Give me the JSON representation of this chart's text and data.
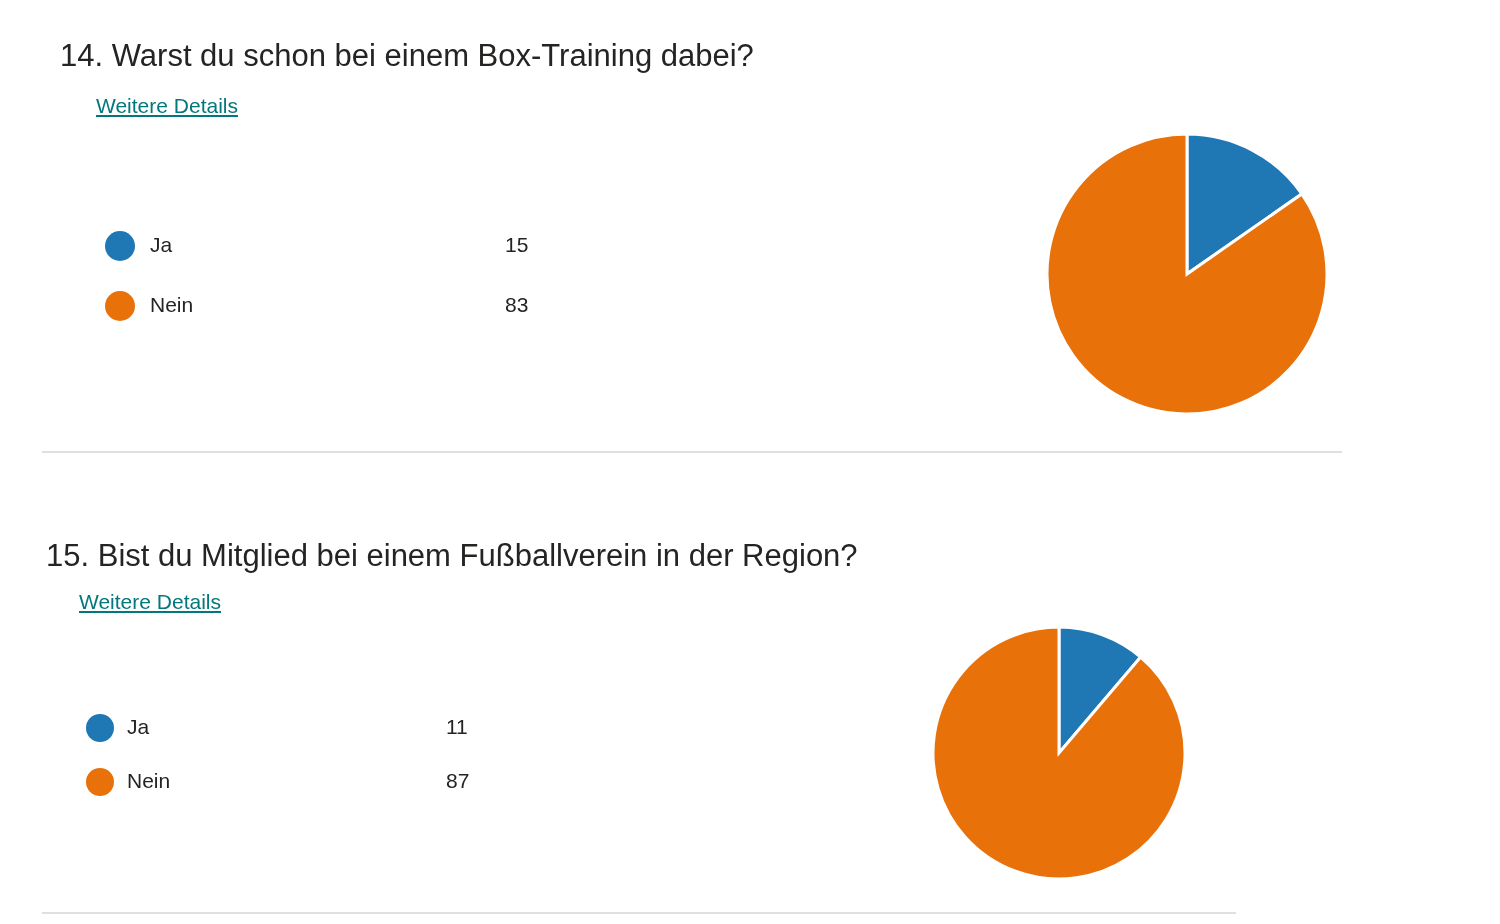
{
  "chart_data": [
    {
      "type": "pie",
      "title": "14. Warst du schon bei einem Box-Training dabei?",
      "annotations": [
        "Weitere Details"
      ],
      "categories": [
        "Ja",
        "Nein"
      ],
      "values": [
        15,
        83
      ],
      "colors": [
        "#1f77b4",
        "#e8710a"
      ],
      "legend": "left",
      "data_labels": true
    },
    {
      "type": "pie",
      "title": "15. Bist du Mitglied bei einem Fußballverein in der Region?",
      "annotations": [
        "Weitere Details"
      ],
      "categories": [
        "Ja",
        "Nein"
      ],
      "values": [
        11,
        87
      ],
      "colors": [
        "#1f77b4",
        "#e8710a"
      ],
      "legend": "left",
      "data_labels": true
    }
  ]
}
